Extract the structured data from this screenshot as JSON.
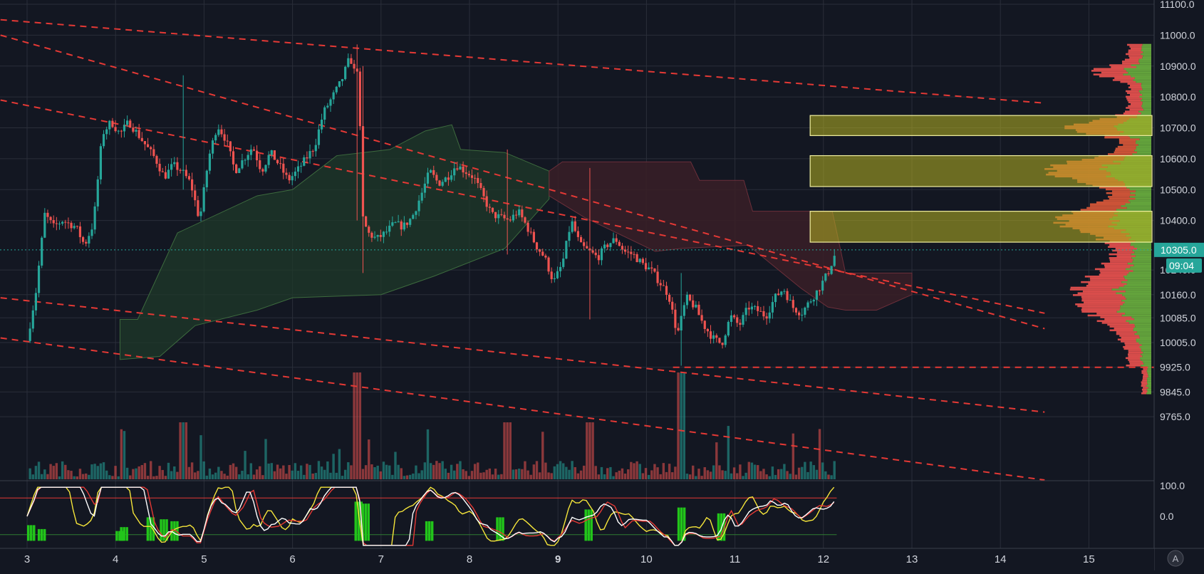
{
  "chart_data": {
    "type": "candlestick",
    "price_axis": {
      "ticks": [
        "11100.0",
        "11000.0",
        "10900.0",
        "10800.0",
        "10700.0",
        "10600.0",
        "10500.0",
        "10400.0",
        "10240.0",
        "10160.0",
        "10085.0",
        "10005.0",
        "9925.0",
        "9845.0",
        "9765.0"
      ],
      "current_price": "10305.0",
      "countdown": "09:04"
    },
    "time_axis": {
      "ticks": [
        "3",
        "4",
        "5",
        "6",
        "7",
        "8",
        "9",
        "10",
        "11",
        "12",
        "13",
        "14",
        "15"
      ],
      "bold_tick": "9"
    },
    "indicator_axis": {
      "ticks": [
        "100.0",
        "0.0"
      ]
    },
    "corner_button": "A",
    "colors": {
      "background": "#131722",
      "up": "#26a69a",
      "down": "#ef5350",
      "trendline": "#e53935",
      "cloud_bull": "#1f3a2a",
      "cloud_bear": "#3a1f27",
      "highlight_zone": "#b6b322",
      "vp_green": "#6db33f",
      "vp_red": "#e05a3a",
      "stoch_k": "#f5e53a",
      "stoch_d": "#ffffff",
      "stoch_slow": "#e53935",
      "signal_bar": "#22c51a"
    },
    "price_path": [
      [
        0.0,
        10010
      ],
      [
        0.1,
        10170
      ],
      [
        0.2,
        10420
      ],
      [
        0.3,
        10380
      ],
      [
        0.4,
        10400
      ],
      [
        0.55,
        10380
      ],
      [
        0.65,
        10320
      ],
      [
        0.75,
        10390
      ],
      [
        0.85,
        10680
      ],
      [
        0.95,
        10720
      ],
      [
        1.05,
        10680
      ],
      [
        1.15,
        10720
      ],
      [
        1.25,
        10680
      ],
      [
        1.35,
        10640
      ],
      [
        1.45,
        10600
      ],
      [
        1.55,
        10540
      ],
      [
        1.65,
        10580
      ],
      [
        1.75,
        10560
      ],
      [
        1.85,
        10520
      ],
      [
        1.95,
        10400
      ],
      [
        2.05,
        10600
      ],
      [
        2.15,
        10710
      ],
      [
        2.25,
        10660
      ],
      [
        2.35,
        10560
      ],
      [
        2.45,
        10600
      ],
      [
        2.55,
        10640
      ],
      [
        2.65,
        10560
      ],
      [
        2.75,
        10620
      ],
      [
        2.85,
        10580
      ],
      [
        2.95,
        10530
      ],
      [
        3.05,
        10560
      ],
      [
        3.15,
        10600
      ],
      [
        3.25,
        10640
      ],
      [
        3.35,
        10750
      ],
      [
        3.45,
        10800
      ],
      [
        3.55,
        10850
      ],
      [
        3.6,
        10890
      ],
      [
        3.65,
        10930
      ],
      [
        3.7,
        10880
      ],
      [
        3.75,
        10900
      ],
      [
        3.78,
        10420
      ],
      [
        3.85,
        10360
      ],
      [
        3.95,
        10340
      ],
      [
        4.05,
        10360
      ],
      [
        4.15,
        10390
      ],
      [
        4.25,
        10380
      ],
      [
        4.35,
        10410
      ],
      [
        4.45,
        10480
      ],
      [
        4.55,
        10560
      ],
      [
        4.65,
        10520
      ],
      [
        4.75,
        10540
      ],
      [
        4.85,
        10580
      ],
      [
        4.95,
        10560
      ],
      [
        5.05,
        10540
      ],
      [
        5.15,
        10480
      ],
      [
        5.25,
        10420
      ],
      [
        5.35,
        10410
      ],
      [
        5.45,
        10400
      ],
      [
        5.55,
        10430
      ],
      [
        5.65,
        10380
      ],
      [
        5.75,
        10320
      ],
      [
        5.85,
        10280
      ],
      [
        5.95,
        10200
      ],
      [
        6.05,
        10260
      ],
      [
        6.15,
        10400
      ],
      [
        6.25,
        10320
      ],
      [
        6.35,
        10300
      ],
      [
        6.45,
        10280
      ],
      [
        6.55,
        10320
      ],
      [
        6.65,
        10340
      ],
      [
        6.75,
        10300
      ],
      [
        6.85,
        10290
      ],
      [
        6.95,
        10260
      ],
      [
        7.05,
        10240
      ],
      [
        7.15,
        10200
      ],
      [
        7.25,
        10160
      ],
      [
        7.35,
        10030
      ],
      [
        7.45,
        10150
      ],
      [
        7.55,
        10120
      ],
      [
        7.65,
        10060
      ],
      [
        7.75,
        10020
      ],
      [
        7.85,
        10000
      ],
      [
        7.95,
        10090
      ],
      [
        8.05,
        10060
      ],
      [
        8.15,
        10120
      ],
      [
        8.25,
        10110
      ],
      [
        8.35,
        10090
      ],
      [
        8.45,
        10150
      ],
      [
        8.55,
        10180
      ],
      [
        8.65,
        10120
      ],
      [
        8.75,
        10100
      ],
      [
        8.85,
        10140
      ],
      [
        8.95,
        10180
      ],
      [
        9.05,
        10230
      ],
      [
        9.15,
        10305
      ]
    ],
    "overlays": {
      "trendlines": 5,
      "horizontal_level": 9925,
      "highlight_zones": [
        [
          10675,
          10740
        ],
        [
          10510,
          10610
        ],
        [
          10330,
          10430
        ]
      ]
    }
  }
}
